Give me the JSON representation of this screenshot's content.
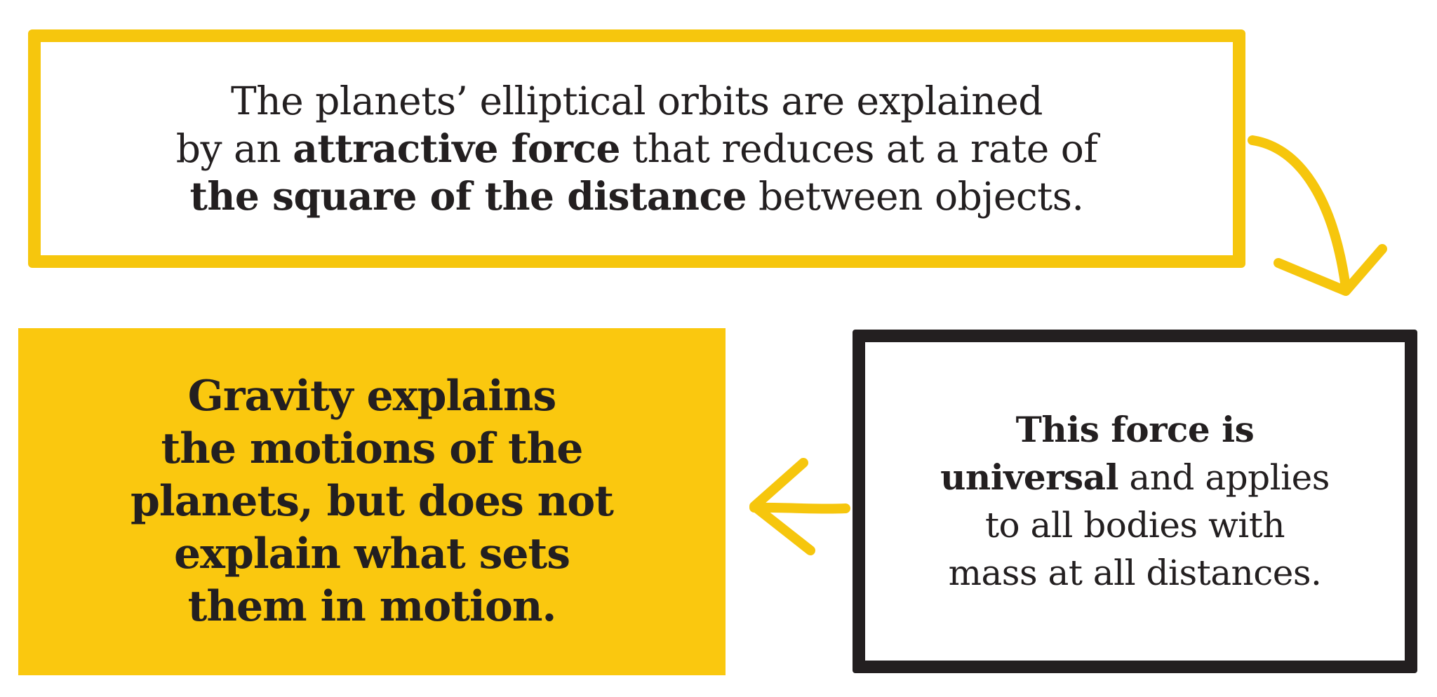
{
  "colors": {
    "yellow": "#f6c60d",
    "yellow_fill": "#fac80f",
    "dark": "#231f20",
    "background": "#ffffff"
  },
  "top_box": {
    "line1": "The planets’ elliptical orbits are explained",
    "line2_pre": "by an ",
    "line2_bold": "attractive force",
    "line2_post": " that reduces at a rate of",
    "line3_bold": "the square of the distance",
    "line3_post": " between objects."
  },
  "right_box": {
    "line1_bold": "This force is",
    "line2_bold": "universal",
    "line2_post": " and applies",
    "line3": "to all bodies with",
    "line4": "mass at all distances."
  },
  "left_box": {
    "line1": "Gravity explains",
    "line2": "the motions of the",
    "line3": "planets, but does not",
    "line4": "explain what sets",
    "line5": "them in motion."
  },
  "arrows": [
    {
      "name": "top-to-right-arrow",
      "color": "yellow"
    },
    {
      "name": "right-to-left-arrow",
      "color": "yellow"
    }
  ]
}
